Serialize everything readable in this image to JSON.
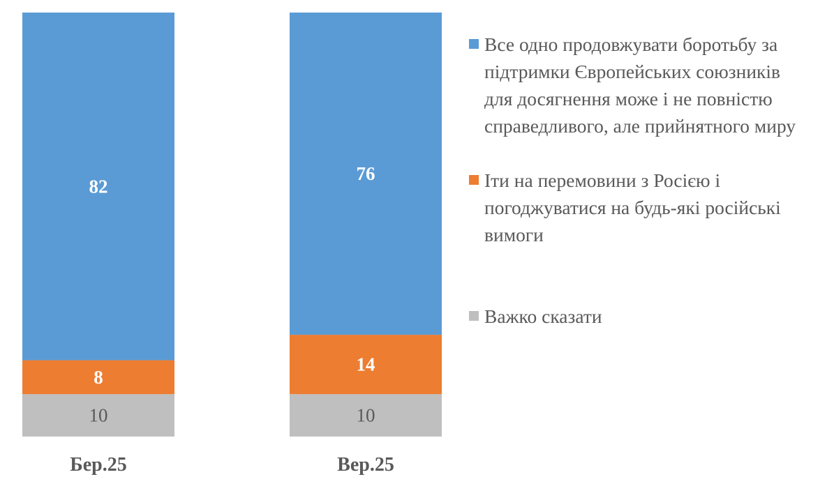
{
  "chart_data": {
    "type": "bar",
    "stacked": true,
    "categories": [
      "Бер.25",
      "Вер.25"
    ],
    "ylim": [
      0,
      100
    ],
    "grid": false,
    "legend_position": "right",
    "series": [
      {
        "name": "Важко сказати",
        "color": "#BFBFBF",
        "label_color": "#595959",
        "label_bold": false,
        "values": [
          10,
          10
        ]
      },
      {
        "name": "Іти на перемовини з Росією і погоджуватися на будь-які російські вимоги",
        "color": "#ED7D31",
        "label_color": "#FFFFFF",
        "label_bold": true,
        "values": [
          8,
          14
        ]
      },
      {
        "name": "Все одно продовжувати боротьбу за підтримки Європейських союзників для досягнення може і не повністю справедливого, але прийнятного миру",
        "color": "#5B9BD5",
        "label_color": "#FFFFFF",
        "label_bold": true,
        "values": [
          82,
          76
        ]
      }
    ]
  },
  "legend": [
    {
      "label": "Все одно продовжувати боротьбу за підтримки Європейських союзників для досягнення може і не повністю справедливого, але прийнятного миру",
      "color": "#5B9BD5"
    },
    {
      "label": "Іти на перемовини з Росією і погоджуватися на будь-які російські вимоги",
      "color": "#ED7D31"
    },
    {
      "label": "Важко сказати",
      "color": "#BFBFBF"
    }
  ]
}
